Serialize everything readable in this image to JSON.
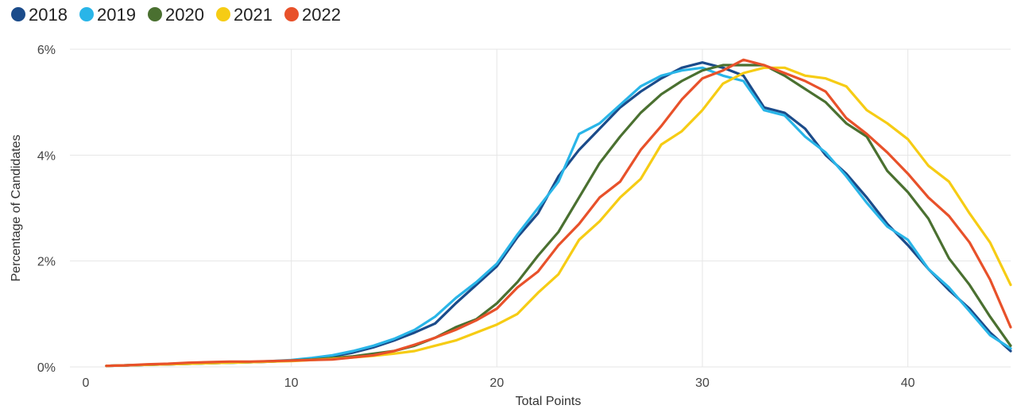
{
  "chart_data": {
    "type": "line",
    "xlabel": "Total Points",
    "ylabel": "Percentage of Candidates",
    "xlim": [
      0,
      45
    ],
    "ylim": [
      0,
      6
    ],
    "x_ticks": [
      0,
      10,
      20,
      30,
      40
    ],
    "x_tick_labels": [
      "0",
      "10",
      "20",
      "30",
      "40"
    ],
    "y_ticks": [
      0,
      2,
      4,
      6
    ],
    "y_tick_labels": [
      "0%",
      "2%",
      "4%",
      "6%"
    ],
    "grid": true,
    "legend_position": "top-left",
    "x": [
      1,
      2,
      3,
      4,
      5,
      6,
      7,
      8,
      9,
      10,
      11,
      12,
      13,
      14,
      15,
      16,
      17,
      18,
      19,
      20,
      21,
      22,
      23,
      24,
      25,
      26,
      27,
      28,
      29,
      30,
      31,
      32,
      33,
      34,
      35,
      36,
      37,
      38,
      39,
      40,
      41,
      42,
      43,
      44,
      45
    ],
    "series": [
      {
        "name": "2018",
        "color": "#1b4b8a",
        "values": [
          0.02,
          0.03,
          0.04,
          0.05,
          0.06,
          0.07,
          0.08,
          0.09,
          0.1,
          0.12,
          0.15,
          0.2,
          0.27,
          0.37,
          0.5,
          0.65,
          0.82,
          1.2,
          1.55,
          1.9,
          2.45,
          2.9,
          3.6,
          4.1,
          4.5,
          4.9,
          5.2,
          5.45,
          5.65,
          5.75,
          5.65,
          5.5,
          4.9,
          4.8,
          4.5,
          4.0,
          3.65,
          3.2,
          2.7,
          2.3,
          1.85,
          1.45,
          1.1,
          0.65,
          0.3
        ]
      },
      {
        "name": "2019",
        "color": "#29b5e8",
        "values": [
          0.02,
          0.03,
          0.04,
          0.05,
          0.06,
          0.07,
          0.08,
          0.09,
          0.11,
          0.13,
          0.17,
          0.22,
          0.3,
          0.4,
          0.53,
          0.7,
          0.95,
          1.3,
          1.6,
          1.95,
          2.5,
          3.0,
          3.5,
          4.4,
          4.6,
          4.95,
          5.3,
          5.5,
          5.6,
          5.65,
          5.5,
          5.4,
          4.85,
          4.75,
          4.35,
          4.05,
          3.6,
          3.1,
          2.65,
          2.4,
          1.85,
          1.5,
          1.05,
          0.6,
          0.35
        ]
      },
      {
        "name": "2020",
        "color": "#4a7030",
        "values": [
          0.02,
          0.03,
          0.04,
          0.05,
          0.06,
          0.07,
          0.08,
          0.09,
          0.1,
          0.12,
          0.14,
          0.17,
          0.2,
          0.25,
          0.3,
          0.4,
          0.55,
          0.75,
          0.9,
          1.2,
          1.6,
          2.1,
          2.55,
          3.2,
          3.85,
          4.35,
          4.8,
          5.15,
          5.4,
          5.6,
          5.7,
          5.7,
          5.7,
          5.5,
          5.25,
          5.0,
          4.6,
          4.35,
          3.7,
          3.3,
          2.8,
          2.05,
          1.55,
          0.95,
          0.4
        ]
      },
      {
        "name": "2021",
        "color": "#f6cc14",
        "values": [
          0.02,
          0.03,
          0.04,
          0.05,
          0.06,
          0.07,
          0.08,
          0.09,
          0.1,
          0.11,
          0.13,
          0.15,
          0.18,
          0.21,
          0.25,
          0.3,
          0.4,
          0.5,
          0.65,
          0.8,
          1.0,
          1.4,
          1.75,
          2.4,
          2.75,
          3.2,
          3.55,
          4.2,
          4.45,
          4.85,
          5.35,
          5.55,
          5.65,
          5.65,
          5.5,
          5.45,
          5.3,
          4.85,
          4.6,
          4.3,
          3.8,
          3.5,
          2.9,
          2.35,
          1.55
        ]
      },
      {
        "name": "2022",
        "color": "#e8512a",
        "values": [
          0.02,
          0.03,
          0.05,
          0.06,
          0.08,
          0.09,
          0.1,
          0.1,
          0.11,
          0.12,
          0.13,
          0.14,
          0.18,
          0.22,
          0.3,
          0.42,
          0.55,
          0.7,
          0.88,
          1.1,
          1.5,
          1.8,
          2.3,
          2.7,
          3.2,
          3.5,
          4.1,
          4.55,
          5.05,
          5.45,
          5.6,
          5.8,
          5.7,
          5.55,
          5.4,
          5.2,
          4.7,
          4.4,
          4.05,
          3.65,
          3.2,
          2.85,
          2.35,
          1.65,
          0.75
        ]
      }
    ]
  }
}
